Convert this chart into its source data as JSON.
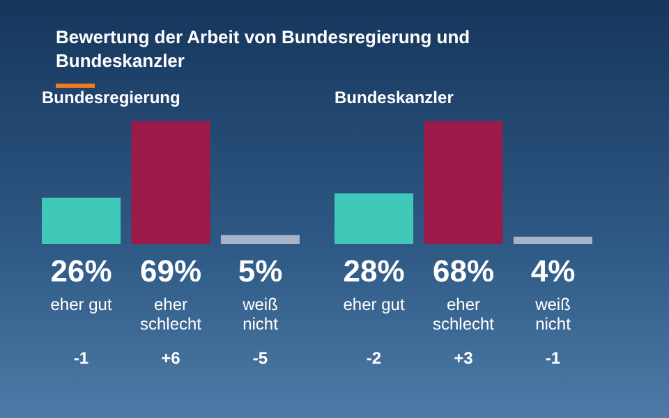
{
  "chart_data": [
    {
      "type": "bar",
      "title": "Bewertung der Arbeit von Bundesregierung und Bundeskanzler",
      "subtitle": "Bundesregierung",
      "categories": [
        "eher gut",
        "eher schlecht",
        "weiß nicht"
      ],
      "values": [
        26,
        69,
        5
      ],
      "colors": [
        "#40c8b8",
        "#9c1a4a",
        "#a7b3c8"
      ],
      "value_labels": [
        "26%",
        "69%",
        "5%"
      ],
      "annotations": [
        "-1",
        "+6",
        "-5"
      ]
    },
    {
      "type": "bar",
      "title": "Bundeskanzler",
      "categories": [
        "eher gut",
        "eher schlecht",
        "weiß nicht"
      ],
      "values": [
        28,
        68,
        4
      ],
      "colors": [
        "#40c8b8",
        "#9c1a4a",
        "#a7b3c8"
      ],
      "value_labels": [
        "28%",
        "68%",
        "4%"
      ],
      "annotations": [
        "-2",
        "+3",
        "-1"
      ]
    }
  ]
}
